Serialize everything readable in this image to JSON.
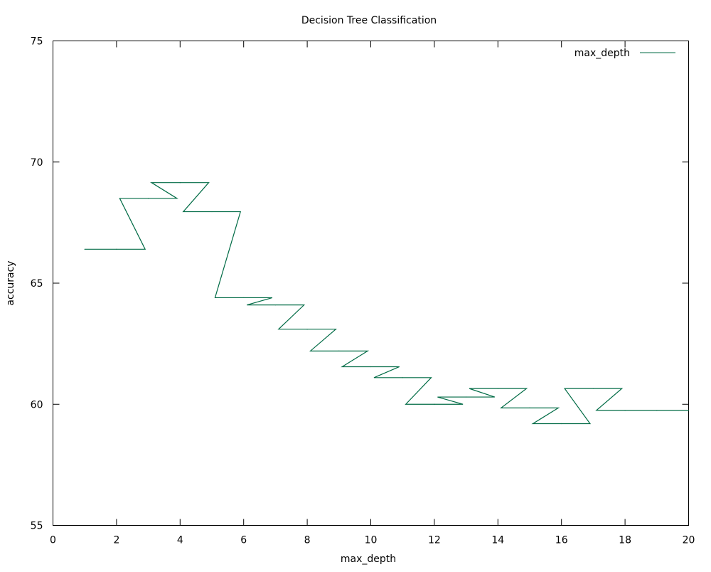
{
  "chart_data": {
    "type": "line",
    "title": "Decision Tree Classification",
    "xlabel": "max_depth",
    "ylabel": "accuracy",
    "xlim": [
      0,
      20
    ],
    "ylim": [
      55,
      75
    ],
    "x_ticks": [
      0,
      2,
      4,
      6,
      8,
      10,
      12,
      14,
      16,
      18,
      20
    ],
    "y_ticks": [
      55,
      60,
      65,
      70,
      75
    ],
    "grid": false,
    "legend_position": "top-right",
    "series": [
      {
        "name": "max_depth",
        "color": "#006b45",
        "x": [
          1,
          2,
          3,
          4,
          5,
          6,
          7,
          8,
          9,
          10,
          11,
          12,
          13,
          14,
          15,
          16,
          17,
          18,
          19,
          20
        ],
        "y": [
          66.4,
          66.4,
          68.5,
          69.15,
          67.95,
          64.4,
          64.1,
          63.1,
          62.2,
          61.55,
          61.1,
          60.0,
          60.3,
          60.65,
          59.85,
          59.2,
          60.65,
          59.75,
          59.75,
          59.75
        ]
      }
    ]
  }
}
